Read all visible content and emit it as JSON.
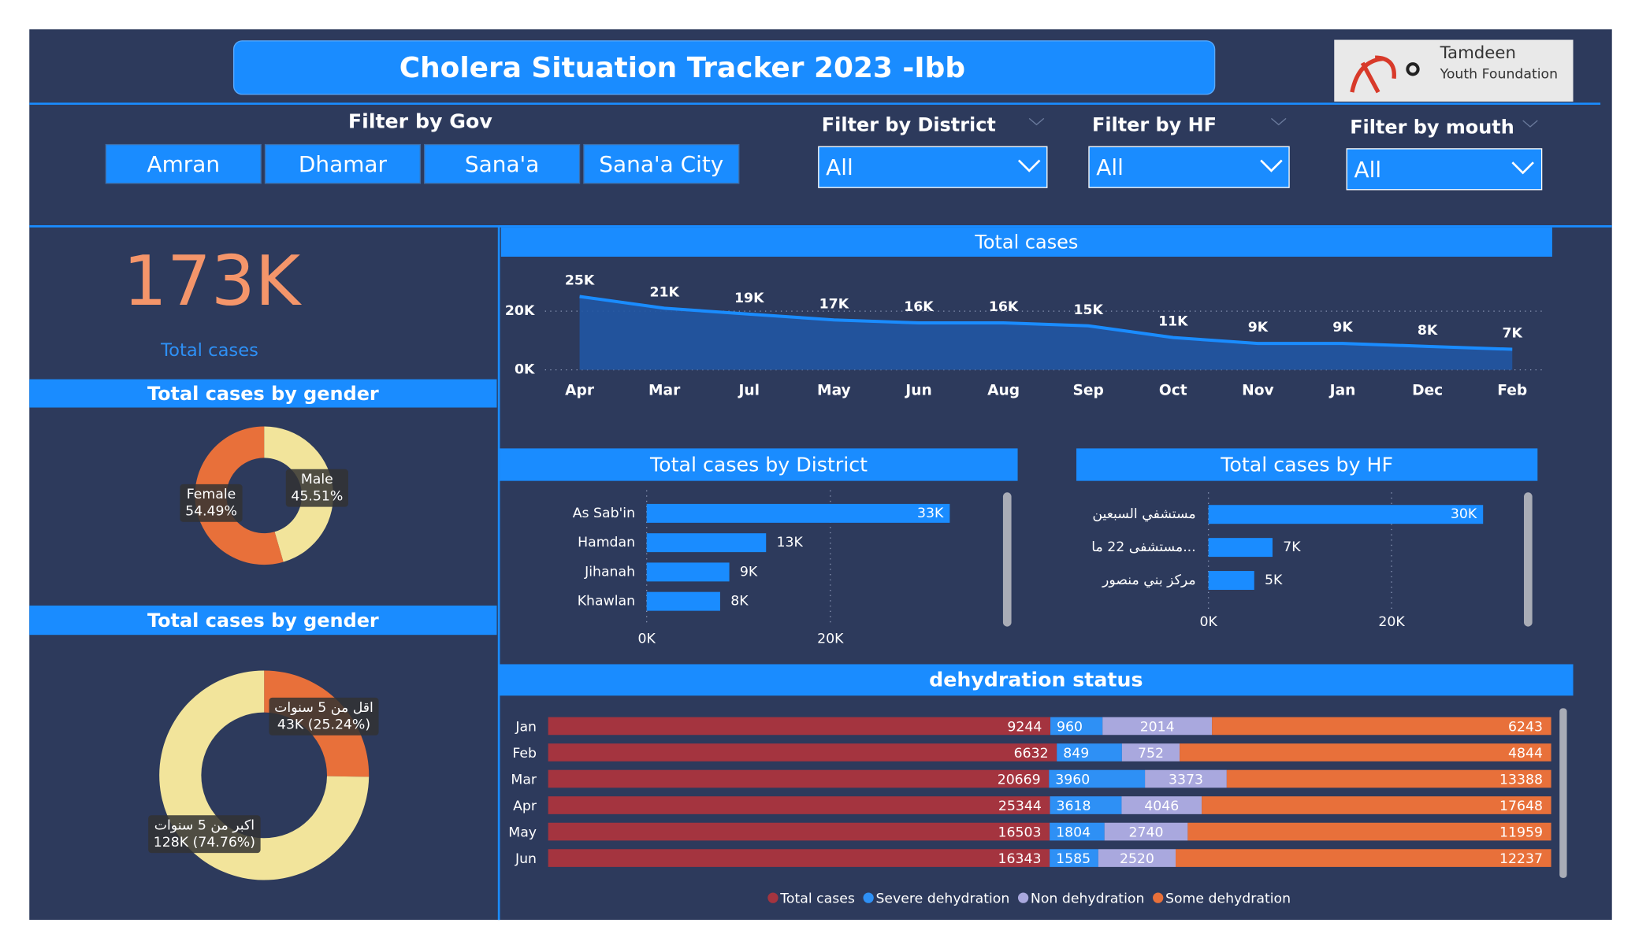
{
  "header": {
    "title": "Cholera Situation Tracker 2023 -Ibb",
    "logo": [
      "Tamdeen",
      "Youth Foundation"
    ]
  },
  "filters": {
    "gov": {
      "label": "Filter by Gov",
      "options": [
        "Amran",
        "Dhamar",
        "Sana'a",
        "Sana'a City"
      ]
    },
    "district": {
      "label": "Filter by District",
      "value": "All"
    },
    "hf": {
      "label": "Filter by HF",
      "value": "All"
    },
    "month": {
      "label": "Filter by mouth",
      "value": "All"
    }
  },
  "kpi": {
    "value": "173K",
    "label": "Total cases"
  },
  "chart_data": [
    {
      "type": "area",
      "title": "Total cases",
      "categories": [
        "Apr",
        "Mar",
        "Jul",
        "May",
        "Jun",
        "Aug",
        "Sep",
        "Oct",
        "Nov",
        "Jan",
        "Dec",
        "Feb"
      ],
      "values": [
        25000,
        21000,
        19000,
        17000,
        16000,
        16000,
        15000,
        11000,
        9000,
        9000,
        8000,
        7000
      ],
      "value_labels": [
        "25K",
        "21K",
        "19K",
        "17K",
        "16K",
        "16K",
        "15K",
        "11K",
        "9K",
        "9K",
        "8K",
        "7K"
      ],
      "color": "#1a8cff",
      "ylim": [
        0,
        30000
      ],
      "yticks": [
        {
          "value": 0,
          "label": "0K"
        },
        {
          "value": 20000,
          "label": "20K"
        }
      ],
      "grid": true
    },
    {
      "type": "donut",
      "title": "Total cases by gender",
      "categories": [
        "Male",
        "Female"
      ],
      "values": [
        45.51,
        54.49
      ],
      "value_labels": [
        "45.51%",
        "54.49%"
      ],
      "colors": [
        "#f2e49b",
        "#e8703a"
      ]
    },
    {
      "type": "donut",
      "title": "Total cases by gender",
      "categories": [
        "اقل من 5 سنوات",
        "اكبر من 5 سنوات"
      ],
      "values": [
        25.24,
        74.76
      ],
      "value_labels": [
        "43K (25.24%)",
        "128K (74.76%)"
      ],
      "colors": [
        "#e8703a",
        "#f2e49b"
      ]
    },
    {
      "type": "hbar",
      "title": "Total cases by District",
      "categories": [
        "As Sab'in",
        "Hamdan",
        "Jihanah",
        "Khawlan"
      ],
      "values": [
        33000,
        13000,
        9000,
        8000
      ],
      "value_labels": [
        "33K",
        "13K",
        "9K",
        "8K"
      ],
      "color": "#1a8cff",
      "xlim": [
        0,
        38000
      ],
      "xticks": [
        {
          "value": 0,
          "label": "0K"
        },
        {
          "value": 20000,
          "label": "20K"
        }
      ],
      "grid": true
    },
    {
      "type": "hbar",
      "title": "Total cases by HF",
      "categories": [
        "مستشفي السبعين",
        "مستشفى 22 ما...",
        "مركز بني منصور"
      ],
      "values": [
        30000,
        7000,
        5000
      ],
      "value_labels": [
        "30K",
        "7K",
        "5K"
      ],
      "color": "#1a8cff",
      "xlim": [
        0,
        34000
      ],
      "xticks": [
        {
          "value": 0,
          "label": "0K"
        },
        {
          "value": 20000,
          "label": "20K"
        }
      ],
      "grid": true
    },
    {
      "type": "stacked",
      "title": "dehydration status",
      "stacking": "percent",
      "legend": "bottom",
      "categories": [
        "Jan",
        "Feb",
        "Mar",
        "Apr",
        "May",
        "Jun"
      ],
      "series": [
        {
          "name": "Total cases",
          "color": "#a4343f",
          "values": [
            9244,
            6632,
            20669,
            25344,
            16503,
            16343
          ]
        },
        {
          "name": "Severe dehydration",
          "color": "#2e90f5",
          "values": [
            960,
            849,
            3960,
            3618,
            1804,
            1585
          ]
        },
        {
          "name": "Non dehydration",
          "color": "#a9a8de",
          "values": [
            2014,
            752,
            3373,
            4046,
            2740,
            2520
          ]
        },
        {
          "name": "Some dehydration",
          "color": "#e8703a",
          "values": [
            6243,
            4844,
            13388,
            17648,
            11959,
            12237
          ]
        }
      ]
    }
  ]
}
